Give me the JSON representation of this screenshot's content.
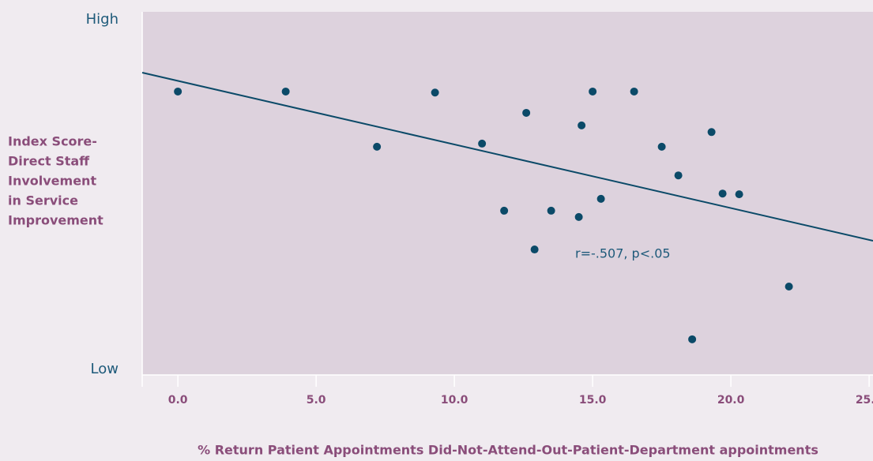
{
  "chart_data": {
    "type": "scatter",
    "x_label": "% Return Patient Appointments Did-Not-Attend-Out-Patient-Department appointments",
    "y_label": [
      "Index Score-",
      "Direct Staff",
      "Involvement",
      "in Service",
      "Improvement"
    ],
    "annotation": "r=-.507, p<.05",
    "x": [
      0.0,
      3.9,
      7.2,
      9.3,
      11.0,
      11.8,
      12.6,
      12.9,
      13.5,
      14.5,
      14.6,
      15.0,
      15.3,
      16.5,
      17.5,
      18.1,
      18.6,
      19.3,
      19.7,
      20.3,
      22.1
    ],
    "values": [
      79.5,
      79.5,
      63.7,
      79.2,
      64.6,
      45.4,
      73.4,
      34.3,
      45.4,
      43.6,
      69.8,
      79.5,
      48.8,
      79.5,
      63.7,
      55.5,
      8.6,
      67.9,
      50.3,
      50.1,
      23.7
    ],
    "color": "#0b4a68",
    "trend_line": {
      "x": [
        -1.29,
        25.14
      ],
      "y": [
        84.9,
        36.8
      ],
      "color": "#0b4a68"
    },
    "xlim": [
      -1.29,
      25.14
    ],
    "ylim": [
      -1.6,
      102.3
    ],
    "xticks": [
      {
        "value": 0,
        "label": "0.0"
      },
      {
        "value": 5,
        "label": "5.0"
      },
      {
        "value": 10,
        "label": "10.0"
      },
      {
        "value": 15,
        "label": "15.0"
      },
      {
        "value": 20,
        "label": "20.0"
      },
      {
        "value": 25,
        "label": "25.0"
      }
    ],
    "yticks": [
      {
        "value": 0,
        "label": "Low"
      },
      {
        "value": 100,
        "label": "High"
      }
    ]
  }
}
